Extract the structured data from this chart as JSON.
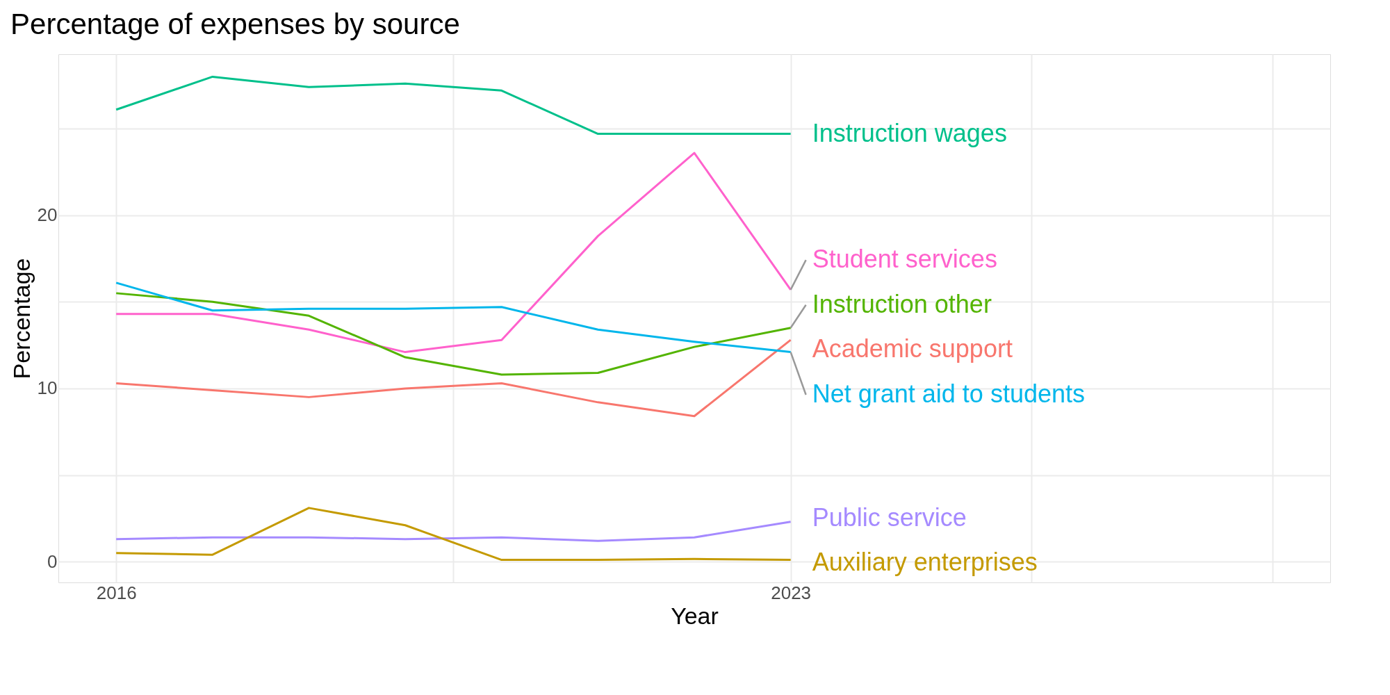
{
  "chart_data": {
    "type": "line",
    "title": "Percentage of expenses by source",
    "xlabel": "Year",
    "ylabel": "Percentage",
    "x": [
      2016,
      2017,
      2018,
      2019,
      2020,
      2021,
      2022,
      2023
    ],
    "series": [
      {
        "name": "Instruction wages",
        "color": "#00c08b",
        "values": [
          26.1,
          28.0,
          27.4,
          27.6,
          27.2,
          24.7,
          24.7,
          24.7
        ]
      },
      {
        "name": "Student services",
        "color": "#ff61cc",
        "values": [
          14.3,
          14.3,
          13.4,
          12.1,
          12.8,
          18.8,
          23.6,
          15.7
        ]
      },
      {
        "name": "Instruction other",
        "color": "#53b400",
        "values": [
          15.5,
          15.0,
          14.2,
          11.8,
          10.8,
          10.9,
          12.4,
          13.5
        ]
      },
      {
        "name": "Academic support",
        "color": "#f8766d",
        "values": [
          10.3,
          9.9,
          9.5,
          10.0,
          10.3,
          9.2,
          8.4,
          12.8
        ]
      },
      {
        "name": "Net grant aid to students",
        "color": "#00b6eb",
        "values": [
          16.1,
          14.5,
          14.6,
          14.6,
          14.7,
          13.4,
          12.7,
          12.1
        ]
      },
      {
        "name": "Public service",
        "color": "#a58aff",
        "values": [
          1.3,
          1.4,
          1.4,
          1.3,
          1.4,
          1.2,
          1.4,
          2.3
        ]
      },
      {
        "name": "Auxiliary enterprises",
        "color": "#c49a00",
        "values": [
          0.5,
          0.4,
          3.1,
          2.1,
          0.1,
          0.1,
          0.15,
          0.1
        ]
      }
    ],
    "xlim": [
      2015.4,
      2028.6
    ],
    "xticks": [
      2016,
      {
        "value": 2019.5,
        "label": null
      },
      2023,
      {
        "value": 2025.5,
        "label": null
      },
      {
        "value": 2028,
        "label": null
      }
    ],
    "ylim": [
      -1.2,
      29.3
    ],
    "yticks": [
      0,
      {
        "value": 5,
        "label": null
      },
      10,
      {
        "value": 15,
        "label": null
      },
      20,
      {
        "value": 25,
        "label": null
      }
    ],
    "grid": true,
    "legend": false,
    "marker": "none",
    "line_style": "solid"
  }
}
